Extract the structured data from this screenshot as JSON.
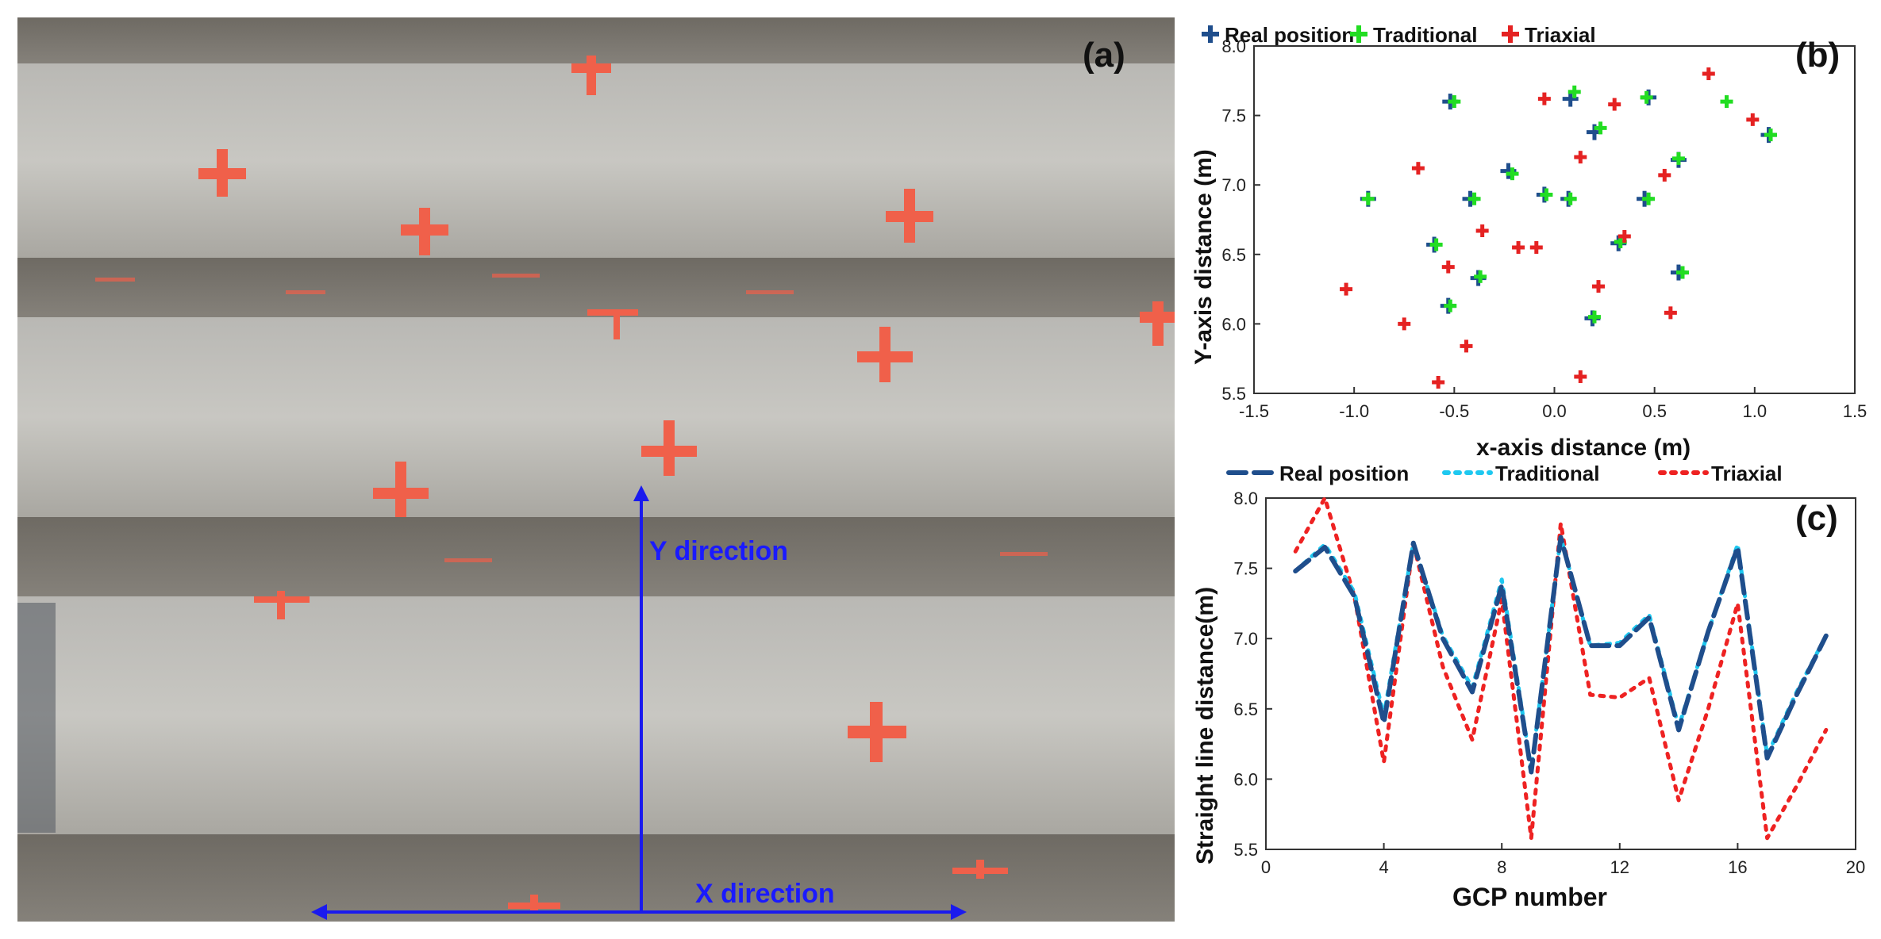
{
  "panel_a": {
    "label": "(a)",
    "x_direction_label": "X direction",
    "y_direction_label": "Y direction",
    "colors": {
      "arrow": "#1a1aee",
      "marker": "#f0604a"
    }
  },
  "chart_data": [
    {
      "type": "scatter",
      "panel_label": "(b)",
      "xlabel": "x-axis distance (m)",
      "ylabel": "Y-axis distance (m)",
      "xlim": [
        -1.5,
        1.5
      ],
      "ylim": [
        5.5,
        8.0
      ],
      "xticks": [
        "-1.5",
        "-1.0",
        "-0.5",
        "0.0",
        "0.5",
        "1.0",
        "1.5"
      ],
      "yticks": [
        "5.5",
        "6.0",
        "6.5",
        "7.0",
        "7.5",
        "8.0"
      ],
      "legend_position": "top",
      "series": [
        {
          "name": "Real position",
          "color": "#1f4e8c",
          "points": [
            [
              -0.52,
              7.6
            ],
            [
              0.08,
              7.62
            ],
            [
              0.47,
              7.63
            ],
            [
              1.07,
              7.36
            ],
            [
              0.2,
              7.38
            ],
            [
              -0.23,
              7.1
            ],
            [
              -0.42,
              6.9
            ],
            [
              -0.05,
              6.93
            ],
            [
              0.07,
              6.9
            ],
            [
              0.62,
              7.18
            ],
            [
              0.45,
              6.9
            ],
            [
              -0.93,
              6.9
            ],
            [
              -0.6,
              6.57
            ],
            [
              -0.38,
              6.33
            ],
            [
              0.32,
              6.58
            ],
            [
              0.62,
              6.37
            ],
            [
              -0.53,
              6.13
            ],
            [
              0.19,
              6.04
            ]
          ]
        },
        {
          "name": "Traditional",
          "color": "#22dd22",
          "points": [
            [
              -0.5,
              7.6
            ],
            [
              0.1,
              7.67
            ],
            [
              0.46,
              7.63
            ],
            [
              0.86,
              7.6
            ],
            [
              1.08,
              7.36
            ],
            [
              0.23,
              7.41
            ],
            [
              -0.21,
              7.08
            ],
            [
              -0.4,
              6.9
            ],
            [
              -0.04,
              6.93
            ],
            [
              0.08,
              6.9
            ],
            [
              0.62,
              7.19
            ],
            [
              0.47,
              6.9
            ],
            [
              -0.93,
              6.9
            ],
            [
              -0.59,
              6.57
            ],
            [
              -0.37,
              6.34
            ],
            [
              0.33,
              6.59
            ],
            [
              0.64,
              6.37
            ],
            [
              -0.52,
              6.13
            ],
            [
              0.2,
              6.05
            ]
          ]
        },
        {
          "name": "Triaxial",
          "color": "#e52222",
          "points": [
            [
              -0.05,
              7.62
            ],
            [
              0.77,
              7.8
            ],
            [
              0.3,
              7.58
            ],
            [
              0.99,
              7.47
            ],
            [
              0.13,
              7.2
            ],
            [
              0.55,
              7.07
            ],
            [
              -0.68,
              7.12
            ],
            [
              -0.36,
              6.67
            ],
            [
              0.35,
              6.63
            ],
            [
              -0.18,
              6.55
            ],
            [
              -0.09,
              6.55
            ],
            [
              -0.53,
              6.41
            ],
            [
              0.22,
              6.27
            ],
            [
              -1.04,
              6.25
            ],
            [
              -0.75,
              6.0
            ],
            [
              0.58,
              6.08
            ],
            [
              -0.44,
              5.84
            ],
            [
              -0.58,
              5.58
            ],
            [
              0.13,
              5.62
            ]
          ]
        }
      ]
    },
    {
      "type": "line",
      "panel_label": "(c)",
      "xlabel": "GCP number",
      "ylabel": "Straight line distance(m)",
      "xlim": [
        0,
        20
      ],
      "ylim": [
        5.5,
        8.0
      ],
      "xticks": [
        "0",
        "4",
        "8",
        "12",
        "16",
        "20"
      ],
      "yticks": [
        "5.5",
        "6.0",
        "6.5",
        "7.0",
        "7.5",
        "8.0"
      ],
      "legend_position": "top",
      "x": [
        1,
        2,
        3,
        4,
        5,
        6,
        7,
        8,
        9,
        10,
        11,
        12,
        13,
        14,
        15,
        16,
        17,
        18,
        19
      ],
      "series": [
        {
          "name": "Real position",
          "color": "#1f4e8c",
          "style": "dashed",
          "values": [
            7.48,
            7.65,
            7.3,
            6.4,
            7.68,
            7.0,
            6.62,
            7.38,
            6.05,
            7.72,
            6.95,
            6.95,
            7.15,
            6.35,
            7.05,
            7.65,
            6.15,
            6.6,
            7.02
          ]
        },
        {
          "name": "Traditional",
          "color": "#1ec8f0",
          "style": "dotted",
          "values": [
            7.48,
            7.67,
            7.33,
            6.45,
            7.68,
            7.02,
            6.65,
            7.42,
            6.07,
            7.72,
            6.95,
            6.97,
            7.17,
            6.37,
            7.05,
            7.67,
            6.17,
            6.62,
            7.02
          ]
        },
        {
          "name": "Triaxial",
          "color": "#ee2222",
          "style": "dotted",
          "values": [
            7.62,
            8.0,
            7.3,
            6.12,
            7.68,
            6.8,
            6.28,
            7.28,
            5.58,
            7.82,
            6.6,
            6.58,
            6.72,
            5.85,
            6.5,
            7.25,
            5.58,
            5.95,
            6.35
          ]
        }
      ]
    }
  ]
}
